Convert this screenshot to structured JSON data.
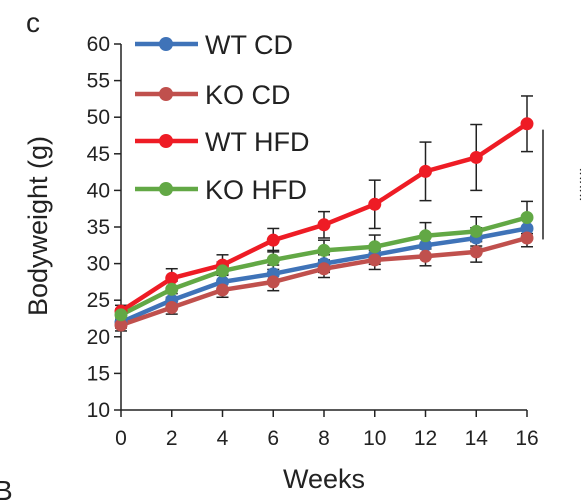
{
  "panel_label": "c",
  "stray_label": "B",
  "chart_data": {
    "type": "line",
    "xlabel": "Weeks",
    "ylabel": "Bodyweight (g)",
    "xlim": [
      0,
      16
    ],
    "ylim": [
      10,
      60
    ],
    "x_ticks": [
      "0",
      "2",
      "4",
      "6",
      "8",
      "10",
      "12",
      "14",
      "16"
    ],
    "y_ticks": [
      "10",
      "15",
      "20",
      "25",
      "30",
      "35",
      "40",
      "45",
      "50",
      "55",
      "60"
    ],
    "grid": false,
    "legend_position": "top-left",
    "x": [
      0,
      2,
      4,
      6,
      8,
      10,
      12,
      14,
      16
    ],
    "series": [
      {
        "name": "WT CD",
        "color": "#3f73b8",
        "values": [
          22.0,
          25.0,
          27.5,
          28.6,
          30.0,
          31.2,
          32.5,
          33.5,
          34.8
        ],
        "errors": [
          0.8,
          0.9,
          1.0,
          1.2,
          1.2,
          1.3,
          1.3,
          1.4,
          1.4
        ]
      },
      {
        "name": "KO CD",
        "color": "#c0504d",
        "values": [
          21.6,
          24.0,
          26.4,
          27.5,
          29.3,
          30.5,
          31.0,
          31.6,
          33.5
        ],
        "errors": [
          0.8,
          0.9,
          1.0,
          1.2,
          1.2,
          1.3,
          1.3,
          1.4,
          1.2
        ]
      },
      {
        "name": "WT HFD",
        "color": "#ee1c25",
        "values": [
          23.5,
          28.0,
          29.8,
          33.2,
          35.3,
          38.1,
          42.6,
          44.5,
          49.1
        ],
        "errors": [
          0.8,
          1.3,
          1.4,
          1.6,
          1.8,
          3.3,
          4.0,
          4.5,
          3.8
        ]
      },
      {
        "name": "KO HFD",
        "color": "#62a845",
        "values": [
          23.0,
          26.5,
          29.0,
          30.5,
          31.8,
          32.3,
          33.8,
          34.4,
          36.3
        ],
        "errors": [
          0.8,
          1.1,
          1.2,
          1.3,
          1.4,
          1.6,
          1.8,
          2.0,
          2.2
        ]
      }
    ],
    "annotations": [
      {
        "text": "****",
        "between": [
          "WT HFD",
          "WT CD"
        ],
        "at_x": 16
      }
    ]
  }
}
